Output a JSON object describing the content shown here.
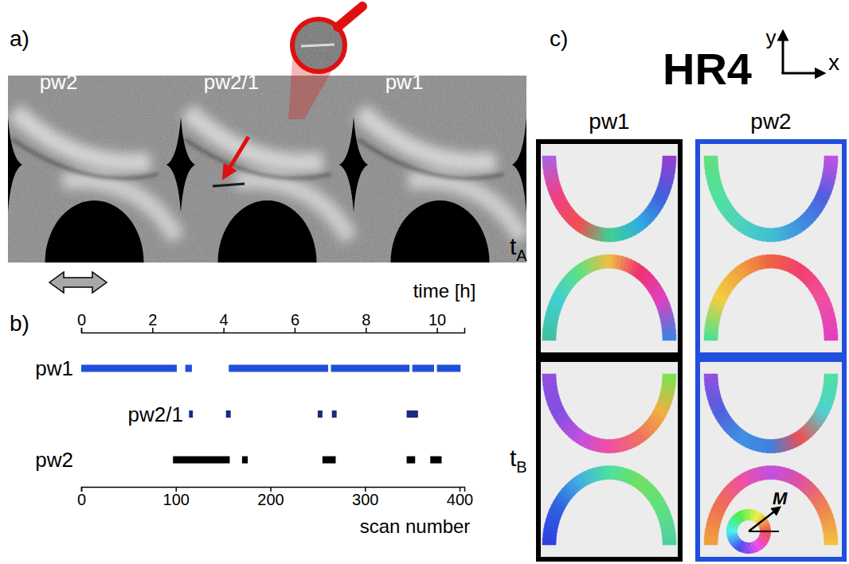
{
  "panel_a": {
    "panel_label": "a)",
    "tiles": [
      "pw2",
      "pw2/1",
      "pw1"
    ]
  },
  "chart_data": {
    "type": "timeline",
    "panel_label": "b)",
    "xlabel": "scan number",
    "x2label": "time [h]",
    "xlim": [
      0,
      405
    ],
    "xticks": [
      0,
      100,
      200,
      300,
      400
    ],
    "x2lim": [
      0,
      10.77
    ],
    "x2ticks": [
      0,
      2,
      4,
      6,
      8,
      10
    ],
    "categories": [
      "pw1",
      "pw2/1",
      "pw2"
    ],
    "series": [
      {
        "color": "#1f4fdc",
        "segments": [
          [
            0,
            101
          ],
          [
            110,
            117
          ],
          [
            156,
            261
          ],
          [
            264,
            347
          ],
          [
            350,
            373
          ],
          [
            376,
            401
          ]
        ]
      },
      {
        "color": "#1a2a80",
        "segments": [
          [
            114,
            118
          ],
          [
            153,
            158
          ],
          [
            250,
            255
          ],
          [
            265,
            270
          ],
          [
            344,
            356
          ]
        ]
      },
      {
        "color": "#000000",
        "segments": [
          [
            97,
            157
          ],
          [
            170,
            176
          ],
          [
            255,
            269
          ],
          [
            344,
            353
          ],
          [
            369,
            381
          ]
        ]
      }
    ]
  },
  "panel_c": {
    "panel_label": "c)",
    "title": "HR4",
    "axes": [
      "y",
      "x"
    ],
    "columns": [
      "pw1",
      "pw2"
    ],
    "column_colors": [
      "#000000",
      "#1f4fdc"
    ],
    "rows": [
      {
        "label": "t",
        "subscript": "A"
      },
      {
        "label": "t",
        "subscript": "B"
      }
    ],
    "cells": [
      [
        {
          "top": [
            "#b060e0",
            "#f04080",
            "#f05050",
            "#40d090",
            "#30b0e0",
            "#4060e0",
            "#9040d0"
          ],
          "bottom": [
            "#40c0a0",
            "#40d0d0",
            "#60e080",
            "#f0c040",
            "#f03070",
            "#e040c0",
            "#4080e0"
          ]
        },
        {
          "top": [
            "#60e080",
            "#50e0a0",
            "#50d0c0",
            "#40c0d0",
            "#4090e0",
            "#5060e0",
            "#c050e0"
          ],
          "bottom": [
            "#50e090",
            "#f0d040",
            "#f0a040",
            "#f06040",
            "#f04070",
            "#f050a0",
            "#e040c0"
          ]
        }
      ],
      [
        {
          "top": [
            "#9050e0",
            "#8050e0",
            "#c050e0",
            "#f050a0",
            "#f07060",
            "#f0b040",
            "#80e050"
          ],
          "bottom": [
            "#3040e0",
            "#3060e0",
            "#40b0e0",
            "#50e0a0",
            "#70e060",
            "#60e080",
            "#50d0a0"
          ]
        },
        {
          "top": [
            "#9050e0",
            "#5060e0",
            "#4090e0",
            "#4080e0",
            "#f05050",
            "#50d0d0",
            "#50e0a0"
          ],
          "bottom": [
            "#f0a040",
            "#f07050",
            "#f050a0",
            "#c050e0",
            "#e050a0",
            "#f08050",
            "#f0c040"
          ]
        }
      ]
    ],
    "wheel_label": "M"
  }
}
